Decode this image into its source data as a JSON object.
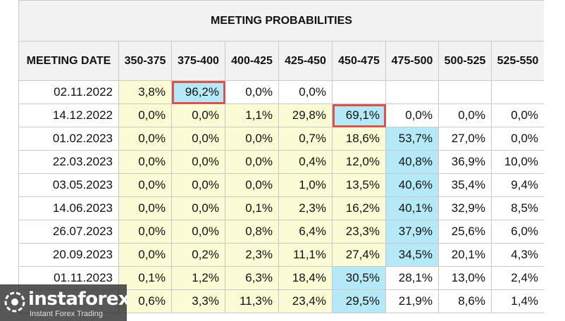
{
  "title": "MEETING PROBABILITIES",
  "columns": [
    "MEETING DATE",
    "350-375",
    "375-400",
    "400-425",
    "425-450",
    "450-475",
    "475-500",
    "500-525",
    "525-550"
  ],
  "rows": [
    {
      "date": "02.11.2022",
      "values": [
        "3,8%",
        "96,2%",
        "0,0%",
        "0,0%",
        "",
        "",
        "",
        ""
      ]
    },
    {
      "date": "14.12.2022",
      "values": [
        "0,0%",
        "0,0%",
        "1,1%",
        "29,8%",
        "69,1%",
        "0,0%",
        "0,0%",
        "0,0%"
      ]
    },
    {
      "date": "01.02.2023",
      "values": [
        "0,0%",
        "0,0%",
        "0,0%",
        "0,7%",
        "18,6%",
        "53,7%",
        "27,0%",
        "0,0%"
      ]
    },
    {
      "date": "22.03.2023",
      "values": [
        "0,0%",
        "0,0%",
        "0,0%",
        "0,4%",
        "12,0%",
        "40,8%",
        "36,9%",
        "10,0%"
      ]
    },
    {
      "date": "03.05.2023",
      "values": [
        "0,0%",
        "0,0%",
        "0,0%",
        "1,0%",
        "13,5%",
        "40,6%",
        "35,4%",
        "9,4%"
      ]
    },
    {
      "date": "14.06.2023",
      "values": [
        "0,0%",
        "0,0%",
        "0,1%",
        "2,3%",
        "16,2%",
        "40,1%",
        "32,9%",
        "8,5%"
      ]
    },
    {
      "date": "26.07.2023",
      "values": [
        "0,0%",
        "0,0%",
        "0,8%",
        "6,4%",
        "23,3%",
        "37,9%",
        "25,6%",
        "6,0%"
      ]
    },
    {
      "date": "20.09.2023",
      "values": [
        "0,0%",
        "0,2%",
        "2,3%",
        "11,1%",
        "27,4%",
        "34,5%",
        "20,1%",
        "4,3%"
      ]
    },
    {
      "date": "01.11.2023",
      "values": [
        "0,1%",
        "1,2%",
        "6,3%",
        "18,4%",
        "30,5%",
        "28,1%",
        "13,0%",
        "2,4%"
      ]
    },
    {
      "date": "",
      "values": [
        "0,6%",
        "3,3%",
        "11,3%",
        "23,4%",
        "29,5%",
        "21,9%",
        "8,6%",
        "1,4%"
      ]
    }
  ],
  "cell_colors": {
    "yellow": "#fbfbd5",
    "blue": "#b5e9f7",
    "highlight_border": "#d9534f"
  },
  "watermark": {
    "brand": "instaforex",
    "tagline": "Instant Forex Trading"
  }
}
